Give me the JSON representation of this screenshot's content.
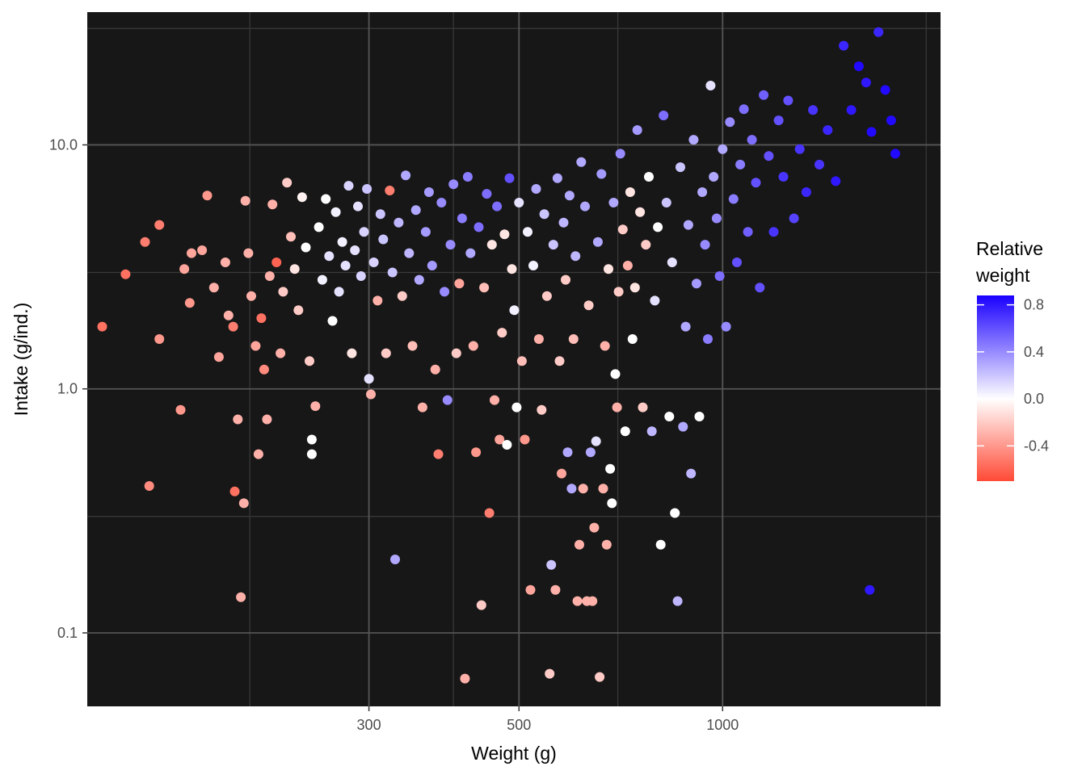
{
  "chart_data": {
    "type": "scatter",
    "title": "",
    "xlabel": "Weight (g)",
    "ylabel": "Intake (g/ind.)",
    "x_scale": "log10",
    "y_scale": "log10",
    "xlim": [
      115,
      2100
    ],
    "ylim": [
      0.05,
      35
    ],
    "x_ticks": [
      300,
      500,
      1000
    ],
    "x_tick_labels": [
      "300",
      "500",
      "1000"
    ],
    "y_ticks": [
      0.1,
      1.0,
      10.0
    ],
    "y_tick_labels": [
      "0.1",
      "1.0",
      "10.0"
    ],
    "grid": true,
    "panel_background": "#171717",
    "grid_color": "#3f3f3f",
    "legend": {
      "title": "Relative weight",
      "title_lines": [
        "Relative",
        "weight"
      ],
      "position": "right",
      "ticks": [
        0.8,
        0.4,
        0.0,
        -0.4
      ],
      "tick_labels": [
        "0.8",
        "0.4",
        "0.0",
        "-0.4"
      ],
      "range": [
        -0.7,
        0.88
      ],
      "colors": {
        "low": "#ff4a36",
        "mid": "#ffffff",
        "high": "#1a00ff"
      }
    },
    "points": [
      [
        121,
        1.8,
        -0.55
      ],
      [
        131,
        2.95,
        -0.55
      ],
      [
        140,
        4.0,
        -0.5
      ],
      [
        147,
        4.7,
        -0.5
      ],
      [
        147,
        1.6,
        -0.4
      ],
      [
        142,
        0.4,
        -0.45
      ],
      [
        158,
        0.82,
        -0.4
      ],
      [
        164,
        3.6,
        -0.35
      ],
      [
        160,
        3.1,
        -0.35
      ],
      [
        163,
        2.25,
        -0.4
      ],
      [
        170,
        3.7,
        -0.35
      ],
      [
        173,
        6.2,
        -0.4
      ],
      [
        177,
        2.6,
        -0.3
      ],
      [
        180,
        1.35,
        -0.35
      ],
      [
        184,
        3.3,
        -0.3
      ],
      [
        186,
        2.0,
        -0.3
      ],
      [
        189,
        1.8,
        -0.5
      ],
      [
        190,
        0.38,
        -0.55
      ],
      [
        192,
        0.75,
        -0.3
      ],
      [
        194,
        0.14,
        -0.3
      ],
      [
        196,
        0.34,
        -0.3
      ],
      [
        197,
        5.9,
        -0.3
      ],
      [
        199,
        3.6,
        -0.3
      ],
      [
        201,
        2.4,
        -0.3
      ],
      [
        204,
        1.5,
        -0.35
      ],
      [
        206,
        0.54,
        -0.3
      ],
      [
        208,
        1.95,
        -0.55
      ],
      [
        210,
        1.2,
        -0.45
      ],
      [
        212,
        0.75,
        -0.3
      ],
      [
        214,
        2.9,
        -0.3
      ],
      [
        216,
        5.7,
        -0.3
      ],
      [
        219,
        3.3,
        -0.6
      ],
      [
        222,
        1.4,
        -0.3
      ],
      [
        224,
        2.5,
        -0.2
      ],
      [
        227,
        7.0,
        -0.2
      ],
      [
        230,
        4.2,
        -0.25
      ],
      [
        233,
        3.1,
        -0.1
      ],
      [
        236,
        2.1,
        -0.2
      ],
      [
        239,
        6.1,
        -0.05
      ],
      [
        242,
        3.8,
        0.0
      ],
      [
        245,
        1.3,
        -0.2
      ],
      [
        247,
        0.62,
        0.0
      ],
      [
        247,
        0.54,
        0.0
      ],
      [
        250,
        0.85,
        -0.3
      ],
      [
        253,
        4.6,
        0.0
      ],
      [
        256,
        2.8,
        0.05
      ],
      [
        259,
        6.0,
        0.0
      ],
      [
        262,
        3.5,
        0.1
      ],
      [
        265,
        1.9,
        0.0
      ],
      [
        268,
        5.3,
        0.05
      ],
      [
        271,
        2.5,
        0.1
      ],
      [
        274,
        4.0,
        0.05
      ],
      [
        277,
        3.2,
        0.1
      ],
      [
        280,
        6.8,
        0.15
      ],
      [
        283,
        1.4,
        -0.1
      ],
      [
        286,
        3.7,
        0.1
      ],
      [
        289,
        5.6,
        0.1
      ],
      [
        292,
        2.9,
        0.15
      ],
      [
        295,
        4.4,
        0.15
      ],
      [
        298,
        6.6,
        0.2
      ],
      [
        300,
        1.1,
        0.1
      ],
      [
        302,
        0.95,
        -0.3
      ],
      [
        305,
        3.3,
        0.15
      ],
      [
        309,
        2.3,
        -0.3
      ],
      [
        312,
        5.2,
        0.2
      ],
      [
        315,
        4.1,
        0.2
      ],
      [
        318,
        1.4,
        -0.2
      ],
      [
        322,
        6.5,
        -0.5
      ],
      [
        325,
        3.0,
        0.2
      ],
      [
        328,
        0.2,
        0.3
      ],
      [
        332,
        4.8,
        0.25
      ],
      [
        336,
        2.4,
        -0.2
      ],
      [
        340,
        7.5,
        0.3
      ],
      [
        344,
        3.6,
        0.25
      ],
      [
        348,
        1.5,
        -0.25
      ],
      [
        352,
        5.4,
        0.3
      ],
      [
        356,
        2.8,
        0.3
      ],
      [
        360,
        0.84,
        -0.3
      ],
      [
        364,
        4.4,
        0.35
      ],
      [
        368,
        6.4,
        0.35
      ],
      [
        372,
        3.2,
        0.35
      ],
      [
        376,
        1.2,
        -0.3
      ],
      [
        380,
        0.54,
        -0.5
      ],
      [
        384,
        5.8,
        0.4
      ],
      [
        388,
        2.5,
        0.4
      ],
      [
        392,
        0.9,
        0.4
      ],
      [
        396,
        3.9,
        0.4
      ],
      [
        400,
        6.9,
        0.4
      ],
      [
        404,
        1.4,
        -0.2
      ],
      [
        408,
        2.7,
        -0.35
      ],
      [
        412,
        5.0,
        0.45
      ],
      [
        416,
        0.065,
        -0.3
      ],
      [
        420,
        7.4,
        0.45
      ],
      [
        424,
        3.6,
        0.3
      ],
      [
        428,
        1.5,
        -0.3
      ],
      [
        432,
        0.55,
        -0.4
      ],
      [
        436,
        4.6,
        0.5
      ],
      [
        440,
        0.13,
        -0.2
      ],
      [
        444,
        2.6,
        -0.25
      ],
      [
        448,
        6.3,
        0.5
      ],
      [
        452,
        0.31,
        -0.5
      ],
      [
        456,
        3.9,
        -0.1
      ],
      [
        460,
        0.9,
        -0.3
      ],
      [
        464,
        5.6,
        0.5
      ],
      [
        468,
        0.62,
        -0.35
      ],
      [
        472,
        1.7,
        -0.2
      ],
      [
        476,
        4.3,
        -0.1
      ],
      [
        480,
        0.59,
        0.0
      ],
      [
        484,
        7.3,
        0.6
      ],
      [
        488,
        3.1,
        -0.1
      ],
      [
        492,
        2.1,
        0.05
      ],
      [
        496,
        0.84,
        0.0
      ],
      [
        500,
        5.8,
        0.1
      ],
      [
        505,
        1.3,
        -0.25
      ],
      [
        510,
        0.62,
        -0.4
      ],
      [
        515,
        4.4,
        0.05
      ],
      [
        520,
        0.15,
        -0.35
      ],
      [
        525,
        3.2,
        0.05
      ],
      [
        530,
        6.6,
        0.3
      ],
      [
        535,
        1.6,
        -0.3
      ],
      [
        540,
        0.82,
        -0.2
      ],
      [
        545,
        5.2,
        0.2
      ],
      [
        550,
        2.4,
        -0.2
      ],
      [
        555,
        0.068,
        -0.2
      ],
      [
        558,
        0.19,
        0.2
      ],
      [
        562,
        3.9,
        0.2
      ],
      [
        566,
        0.15,
        -0.3
      ],
      [
        570,
        7.3,
        0.3
      ],
      [
        574,
        1.3,
        -0.2
      ],
      [
        578,
        0.45,
        -0.35
      ],
      [
        582,
        4.8,
        0.25
      ],
      [
        586,
        2.8,
        -0.2
      ],
      [
        590,
        0.55,
        0.3
      ],
      [
        594,
        6.2,
        0.3
      ],
      [
        598,
        0.39,
        0.3
      ],
      [
        602,
        1.6,
        -0.25
      ],
      [
        606,
        3.5,
        0.25
      ],
      [
        610,
        0.135,
        -0.3
      ],
      [
        614,
        0.23,
        -0.3
      ],
      [
        618,
        8.5,
        0.3
      ],
      [
        622,
        0.39,
        -0.3
      ],
      [
        626,
        5.6,
        0.3
      ],
      [
        630,
        0.135,
        -0.3
      ],
      [
        634,
        2.2,
        -0.2
      ],
      [
        638,
        0.55,
        0.3
      ],
      [
        642,
        0.135,
        -0.3
      ],
      [
        646,
        0.27,
        -0.3
      ],
      [
        650,
        0.61,
        0.1
      ],
      [
        654,
        4.0,
        0.3
      ],
      [
        658,
        0.066,
        -0.2
      ],
      [
        662,
        7.6,
        0.35
      ],
      [
        666,
        0.39,
        -0.3
      ],
      [
        670,
        1.5,
        -0.3
      ],
      [
        674,
        0.23,
        -0.3
      ],
      [
        678,
        3.1,
        -0.1
      ],
      [
        682,
        0.47,
        0.0
      ],
      [
        686,
        0.34,
        0.0
      ],
      [
        690,
        5.8,
        0.3
      ],
      [
        694,
        1.15,
        0.0
      ],
      [
        698,
        0.84,
        -0.3
      ],
      [
        702,
        2.5,
        -0.2
      ],
      [
        706,
        9.2,
        0.4
      ],
      [
        712,
        4.5,
        -0.2
      ],
      [
        718,
        0.67,
        0.0
      ],
      [
        724,
        3.2,
        -0.3
      ],
      [
        730,
        6.4,
        -0.1
      ],
      [
        736,
        1.6,
        0.0
      ],
      [
        742,
        2.6,
        -0.1
      ],
      [
        748,
        11.5,
        0.35
      ],
      [
        755,
        5.3,
        -0.1
      ],
      [
        762,
        0.84,
        -0.2
      ],
      [
        770,
        3.9,
        -0.2
      ],
      [
        778,
        7.4,
        0.0
      ],
      [
        786,
        0.67,
        0.25
      ],
      [
        794,
        2.3,
        0.1
      ],
      [
        802,
        4.6,
        0.0
      ],
      [
        810,
        0.23,
        0.0
      ],
      [
        818,
        13.2,
        0.5
      ],
      [
        826,
        5.8,
        0.2
      ],
      [
        834,
        0.77,
        0.0
      ],
      [
        842,
        3.3,
        0.1
      ],
      [
        850,
        0.31,
        0.0
      ],
      [
        858,
        0.135,
        0.25
      ],
      [
        866,
        8.1,
        0.2
      ],
      [
        874,
        0.7,
        0.3
      ],
      [
        882,
        1.8,
        0.3
      ],
      [
        890,
        4.7,
        0.3
      ],
      [
        898,
        0.45,
        0.25
      ],
      [
        906,
        10.5,
        0.3
      ],
      [
        915,
        2.7,
        0.35
      ],
      [
        924,
        0.77,
        0.0
      ],
      [
        933,
        6.4,
        0.3
      ],
      [
        942,
        3.9,
        0.4
      ],
      [
        951,
        1.6,
        0.45
      ],
      [
        960,
        17.5,
        0.1
      ],
      [
        970,
        7.4,
        0.3
      ],
      [
        980,
        5.0,
        0.4
      ],
      [
        990,
        2.9,
        0.5
      ],
      [
        1000,
        9.6,
        0.3
      ],
      [
        1012,
        1.8,
        0.4
      ],
      [
        1025,
        12.4,
        0.4
      ],
      [
        1038,
        6.0,
        0.45
      ],
      [
        1050,
        3.3,
        0.6
      ],
      [
        1062,
        8.3,
        0.45
      ],
      [
        1075,
        14.0,
        0.5
      ],
      [
        1090,
        4.4,
        0.55
      ],
      [
        1105,
        10.5,
        0.5
      ],
      [
        1120,
        7.0,
        0.6
      ],
      [
        1135,
        2.6,
        0.6
      ],
      [
        1150,
        16.0,
        0.55
      ],
      [
        1170,
        9.0,
        0.6
      ],
      [
        1190,
        4.4,
        0.7
      ],
      [
        1210,
        12.6,
        0.6
      ],
      [
        1230,
        7.4,
        0.7
      ],
      [
        1250,
        15.2,
        0.6
      ],
      [
        1275,
        5.0,
        0.65
      ],
      [
        1300,
        9.6,
        0.7
      ],
      [
        1330,
        6.4,
        0.75
      ],
      [
        1360,
        13.9,
        0.7
      ],
      [
        1390,
        8.3,
        0.7
      ],
      [
        1430,
        11.5,
        0.75
      ],
      [
        1470,
        7.1,
        0.8
      ],
      [
        1510,
        25.5,
        0.75
      ],
      [
        1550,
        13.9,
        0.8
      ],
      [
        1590,
        21.0,
        0.85
      ],
      [
        1630,
        18.0,
        0.8
      ],
      [
        1660,
        11.3,
        0.85
      ],
      [
        1700,
        29.0,
        0.75
      ],
      [
        1740,
        16.8,
        0.85
      ],
      [
        1775,
        12.6,
        0.85
      ],
      [
        1800,
        9.2,
        0.85
      ],
      [
        1650,
        0.15,
        0.8
      ]
    ]
  }
}
